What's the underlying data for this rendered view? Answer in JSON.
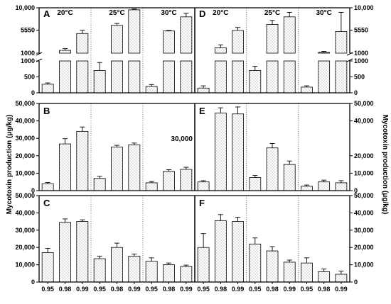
{
  "chart_data": [
    {
      "panel": "A",
      "type": "bar",
      "broken_axis": true,
      "yticks_upper": [
        "10,000",
        "5550",
        "1000"
      ],
      "yticks_lower": [
        "1000",
        "500",
        "0"
      ],
      "temps": [
        "20°C",
        "25°C",
        "30°C"
      ],
      "categories": [
        "0.95",
        "0.98",
        "0.99",
        "0.95",
        "0.98",
        "0.99",
        "0.95",
        "0.98",
        "0.99"
      ],
      "values": [
        270,
        1550,
        4900,
        700,
        6500,
        9600,
        200,
        5400,
        8200
      ],
      "errors": [
        40,
        350,
        650,
        250,
        400,
        150,
        60,
        100,
        750
      ]
    },
    {
      "panel": "D",
      "type": "bar",
      "broken_axis": true,
      "yticks_upper": [
        "10,000",
        "5550",
        "1000"
      ],
      "yticks_lower": [
        "1000",
        "500",
        "0"
      ],
      "temps": [
        "20°C",
        "25°C",
        "30°C"
      ],
      "categories": [
        "0.95",
        "0.98",
        "0.99",
        "0.95",
        "0.98",
        "0.99",
        "0.95",
        "0.98",
        "0.99"
      ],
      "values": [
        150,
        2050,
        5500,
        700,
        6700,
        8200,
        180,
        1150,
        5300
      ],
      "errors": [
        70,
        600,
        600,
        130,
        800,
        900,
        40,
        200,
        3800
      ]
    },
    {
      "panel": "B",
      "type": "bar",
      "ylim": [
        0,
        50000
      ],
      "yticks": [
        "0",
        "10,000",
        "20,000",
        "30,000",
        "40,000",
        "50,000"
      ],
      "values": [
        4000,
        26800,
        34000,
        7000,
        25000,
        26300,
        4500,
        11000,
        12200
      ],
      "errors": [
        700,
        3000,
        2500,
        1200,
        1000,
        1000,
        700,
        1000,
        1200
      ]
    },
    {
      "panel": "E",
      "type": "bar",
      "ylim": [
        0,
        50000
      ],
      "yticks": [
        "0",
        "10,000",
        "20,000",
        "40,000",
        "50,000"
      ],
      "annotation": "30,000",
      "values": [
        5000,
        44500,
        44000,
        7500,
        24500,
        15000,
        2500,
        5000,
        4500
      ],
      "errors": [
        700,
        3000,
        4000,
        1200,
        2500,
        2000,
        700,
        1000,
        1200
      ]
    },
    {
      "panel": "C",
      "type": "bar",
      "ylim": [
        0,
        50000
      ],
      "yticks": [
        "0",
        "10,000",
        "20,000",
        "30,000",
        "40,000",
        "50,000"
      ],
      "values": [
        17000,
        34500,
        35000,
        13500,
        20000,
        15000,
        12000,
        10000,
        9000
      ],
      "errors": [
        2500,
        2000,
        1000,
        1500,
        2500,
        1200,
        2000,
        1000,
        800
      ]
    },
    {
      "panel": "F",
      "type": "bar",
      "ylim": [
        0,
        50000
      ],
      "yticks": [
        "0",
        "10,000",
        "20,000",
        "30,000",
        "40,000",
        "50,000"
      ],
      "values": [
        20000,
        35500,
        35000,
        22000,
        18000,
        11500,
        11000,
        6000,
        4500
      ],
      "errors": [
        8000,
        3500,
        2500,
        3500,
        2500,
        1200,
        3000,
        1500,
        1800
      ]
    }
  ],
  "ylabel": "Mycotoxin production (μg/kg)",
  "x_categories": [
    "0.95",
    "0.98",
    "0.99",
    "0.95",
    "0.98",
    "0.99",
    "0.95",
    "0.98",
    "0.99"
  ]
}
